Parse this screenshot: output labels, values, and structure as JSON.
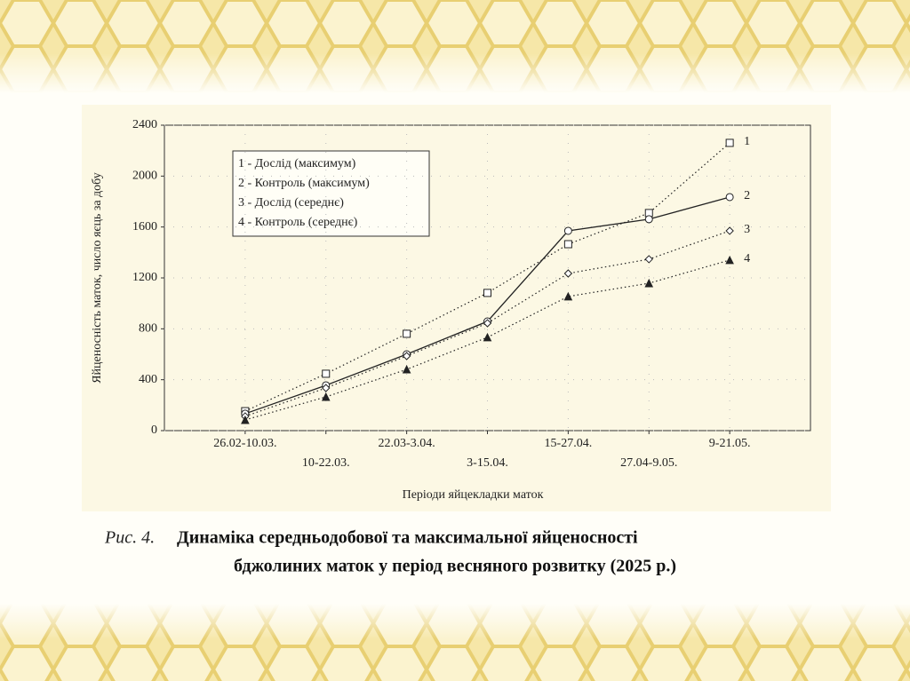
{
  "chart_data": {
    "type": "line",
    "y_label": "Яйценосність маток, число яєць за добу",
    "x_label": "Періоди яйцекладки маток",
    "caption_prefix": "Рис. 4.",
    "caption_line1": "Динаміка середньодобової та максимальної яйценосності",
    "caption_line2": "бджолиних маток у період весняного розвитку (2025 р.)",
    "categories": [
      "26.02-10.03.",
      "10-22.03.",
      "22.03-3.04.",
      "3-15.04.",
      "15-27.04.",
      "27.04-9.05.",
      "9-21.05."
    ],
    "ylim": [
      0,
      2400
    ],
    "yticks": [
      0,
      400,
      800,
      1200,
      1600,
      2000,
      2400
    ],
    "grid": true,
    "series": [
      {
        "name": "1 - Дослід (максимум)",
        "tag": "1",
        "color": "#222222",
        "marker": "square",
        "line_style": "dotted",
        "values": [
          153,
          447,
          761,
          1082,
          1465,
          1710,
          2261
        ]
      },
      {
        "name": "2 - Контроль (максимум)",
        "tag": "2",
        "color": "#222222",
        "marker": "circle",
        "line_style": "solid",
        "values": [
          133,
          356,
          600,
          858,
          1570,
          1661,
          1835
        ]
      },
      {
        "name": "3 - Дослід (середнє)",
        "tag": "3",
        "color": "#222222",
        "marker": "diamond",
        "line_style": "dotted",
        "values": [
          112,
          335,
          586,
          844,
          1235,
          1347,
          1570
        ]
      },
      {
        "name": "4 - Контроль (середнє)",
        "tag": "4",
        "color": "#222222",
        "marker": "triangle",
        "line_style": "dotted",
        "values": [
          84,
          265,
          481,
          733,
          1054,
          1158,
          1340
        ]
      }
    ]
  }
}
